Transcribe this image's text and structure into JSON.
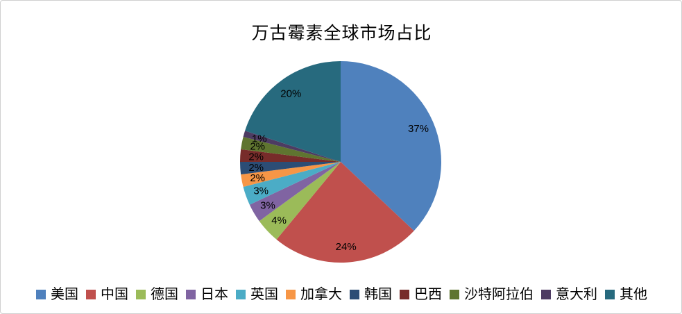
{
  "chart": {
    "title": "万古霉素全球市场占比"
  },
  "chart_data": {
    "type": "pie",
    "title": "万古霉素全球市场占比",
    "categories": [
      "美国",
      "中国",
      "德国",
      "日本",
      "英国",
      "加拿大",
      "韩国",
      "巴西",
      "沙特阿拉伯",
      "意大利",
      "其他"
    ],
    "values": [
      37,
      24,
      4,
      3,
      3,
      2,
      2,
      2,
      2,
      1,
      20
    ],
    "data_labels": [
      "37%",
      "24%",
      "4%",
      "3%",
      "3%",
      "2%",
      "2%",
      "2%",
      "2%",
      "1%",
      "20%"
    ],
    "colors": [
      "#4F81BD",
      "#C0504D",
      "#9BBB59",
      "#8064A2",
      "#4BACC6",
      "#F79646",
      "#2C4D75",
      "#772C2A",
      "#5F7530",
      "#4D3B62",
      "#276A7E"
    ],
    "label_color": "#000000",
    "legend_position": "bottom",
    "start_angle_deg": 0,
    "direction": "clockwise"
  }
}
